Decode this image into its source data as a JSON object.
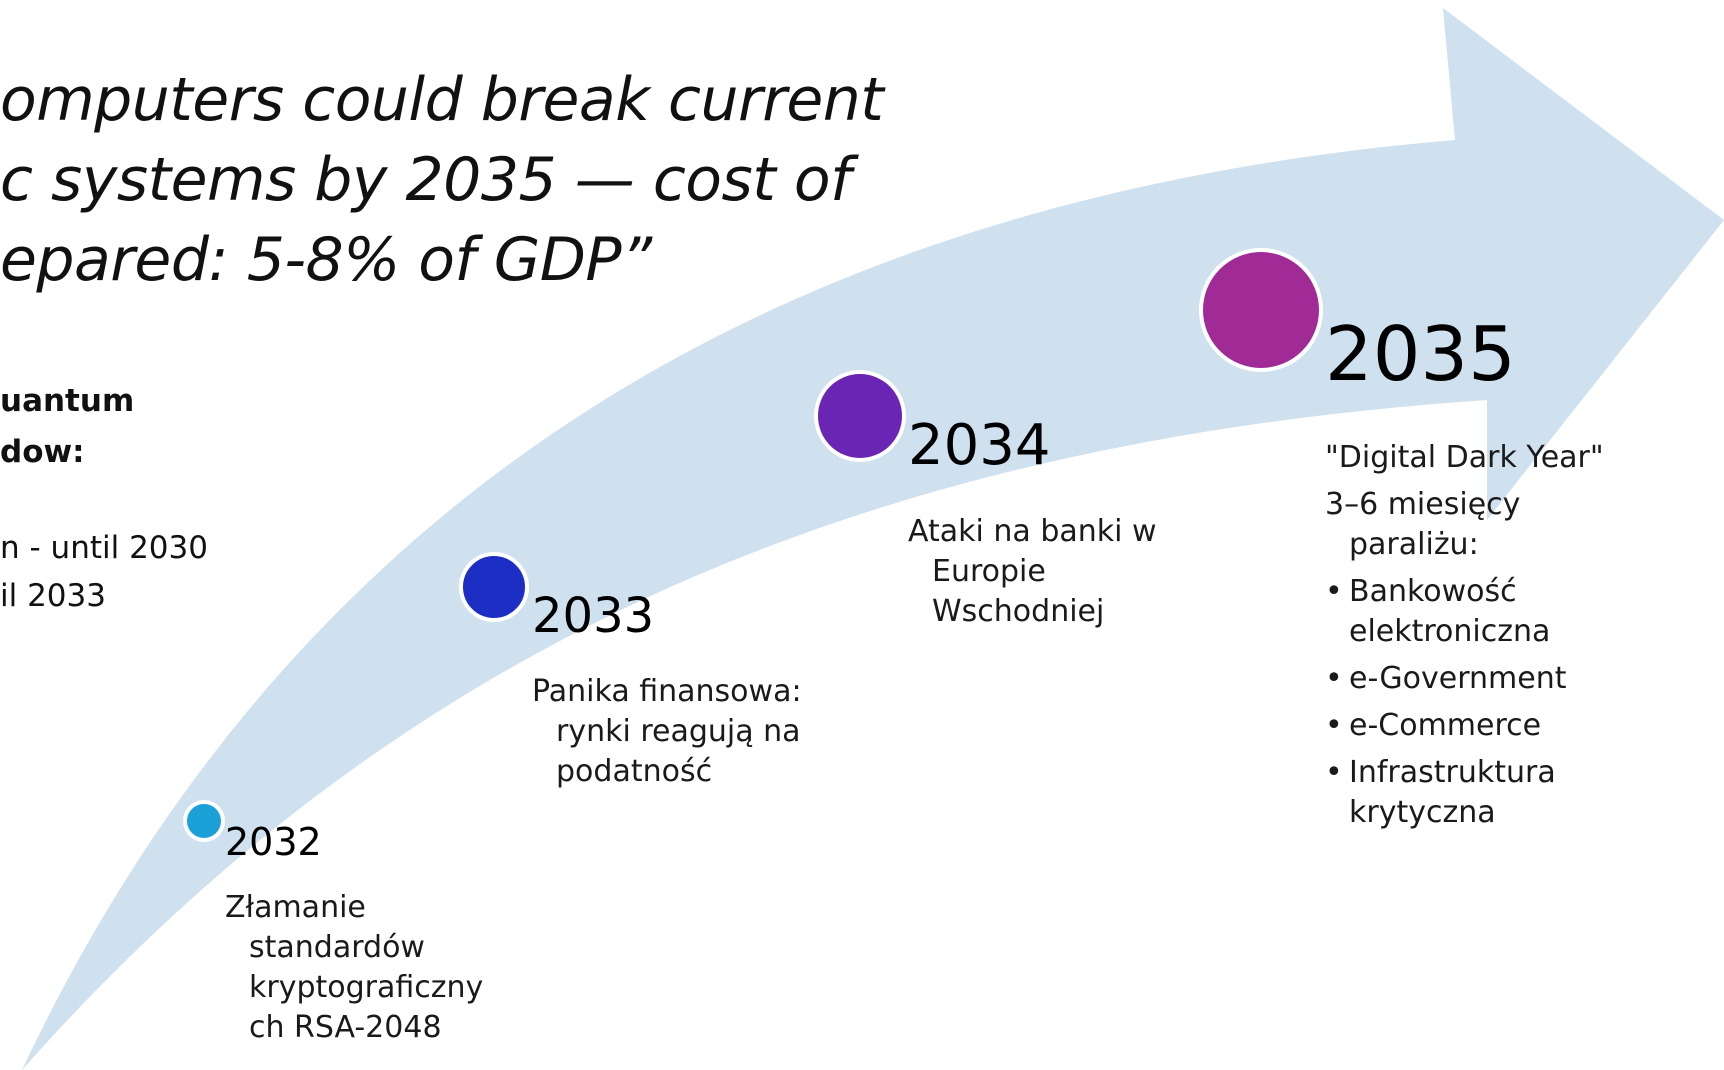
{
  "quote": {
    "lines": [
      "omputers could break current",
      "c systems by 2035 — cost of",
      "epared: 5-8% of GDP”"
    ]
  },
  "side_panel": {
    "heading_lines": [
      "uantum",
      "dow:"
    ],
    "items": [
      "n - until 2030",
      "il 2033"
    ]
  },
  "timeline": {
    "arrow_color": "#cfe0ef",
    "milestones": [
      {
        "year": "2032",
        "color": "#1ba0d8",
        "lines": [
          "Złamanie",
          "standardów",
          "kryptograficzny",
          "ch RSA-2048"
        ]
      },
      {
        "year": "2033",
        "color": "#1d2ec4",
        "lines": [
          "Panika finansowa:",
          "rynki reagują na",
          "podatność"
        ]
      },
      {
        "year": "2034",
        "color": "#6b25b5",
        "lines": [
          "Ataki na banki w",
          "Europie",
          "Wschodniej"
        ]
      },
      {
        "year": "2035",
        "color": "#a12b96",
        "title": "\"Digital Dark Year\"",
        "lines": [
          "3–6 miesięcy",
          "paraliżu:"
        ],
        "bullets": [
          [
            "Bankowość",
            "elektroniczna"
          ],
          [
            "e-Government"
          ],
          [
            "e-Commerce"
          ],
          [
            "Infrastruktura",
            "krytyczna"
          ]
        ]
      }
    ]
  }
}
